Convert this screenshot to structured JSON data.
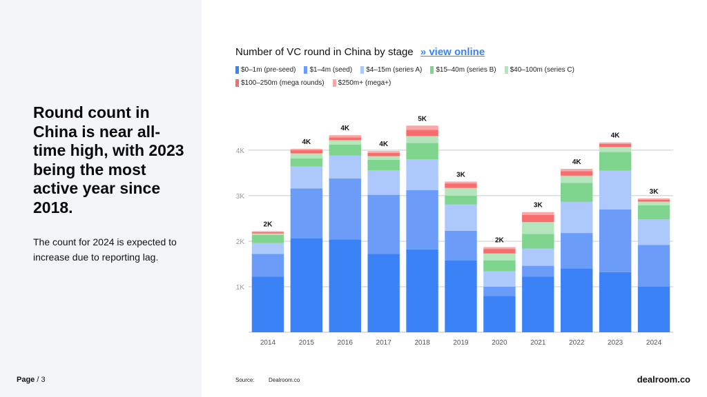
{
  "left_panel": {
    "headline": "Round count in China is near all-time high, with 2023 being the most active year since 2018.",
    "subtext": "The count for 2024 is expected to increase due to reporting lag.",
    "page_label": "Page",
    "page_number": "/ 3"
  },
  "header": {
    "chart_title": "Number of VC round in China by stage",
    "view_online": "» view online"
  },
  "legend": [
    {
      "label": "$0–1m (pre-seed)",
      "color": "#3b82f6"
    },
    {
      "label": "$1–4m (seed)",
      "color": "#6b9cf8"
    },
    {
      "label": "$4–15m (series A)",
      "color": "#adc8fb"
    },
    {
      "label": "$15–40m (series B)",
      "color": "#7fd48e"
    },
    {
      "label": "$40–100m (series C)",
      "color": "#b4e5bc"
    },
    {
      "label": "$100–250m (mega rounds)",
      "color": "#f76c6c"
    },
    {
      "label": "$250m+ (mega+)",
      "color": "#f9a8a8"
    }
  ],
  "chart_data": {
    "type": "bar",
    "stacked": true,
    "title": "Number of VC round in China by stage",
    "categories": [
      "2014",
      "2015",
      "2016",
      "2017",
      "2018",
      "2019",
      "2020",
      "2021",
      "2022",
      "2023",
      "2024"
    ],
    "series": [
      {
        "name": "$0–1m (pre-seed)",
        "color": "#3b82f6",
        "values": [
          1220,
          2060,
          2040,
          1720,
          1820,
          1580,
          800,
          1220,
          1400,
          1320,
          1000
        ]
      },
      {
        "name": "$1–4m (seed)",
        "color": "#6b9cf8",
        "values": [
          500,
          1100,
          1340,
          1300,
          1300,
          650,
          200,
          240,
          780,
          1380,
          920
        ]
      },
      {
        "name": "$4–15m (series A)",
        "color": "#adc8fb",
        "values": [
          240,
          480,
          500,
          540,
          680,
          580,
          340,
          380,
          690,
          850,
          560
        ]
      },
      {
        "name": "$15–40m (series B)",
        "color": "#7fd48e",
        "values": [
          180,
          180,
          240,
          230,
          360,
          190,
          240,
          320,
          410,
          410,
          310
        ]
      },
      {
        "name": "$40–100m (series C)",
        "color": "#b4e5bc",
        "values": [
          30,
          110,
          100,
          80,
          150,
          170,
          150,
          260,
          160,
          110,
          80
        ]
      },
      {
        "name": "$100–250m (mega rounds)",
        "color": "#f76c6c",
        "values": [
          30,
          70,
          60,
          70,
          140,
          100,
          100,
          160,
          100,
          70,
          40
        ]
      },
      {
        "name": "$250m+ (mega+)",
        "color": "#f9a8a8",
        "values": [
          20,
          30,
          50,
          40,
          90,
          40,
          40,
          60,
          50,
          30,
          30
        ]
      }
    ],
    "total_labels": [
      "2K",
      "4K",
      "4K",
      "4K",
      "5K",
      "3K",
      "2K",
      "3K",
      "4K",
      "4K",
      "3K"
    ],
    "y_ticks": [
      1000,
      2000,
      3000,
      4000
    ],
    "y_tick_labels": [
      "1K",
      "2K",
      "3K",
      "4K"
    ],
    "ylim": [
      0,
      4650
    ],
    "xlabel": "",
    "ylabel": "",
    "grid": true
  },
  "footer": {
    "source_label": "Source:",
    "source_value": "Dealroom.co",
    "brand": "dealroom.co"
  }
}
